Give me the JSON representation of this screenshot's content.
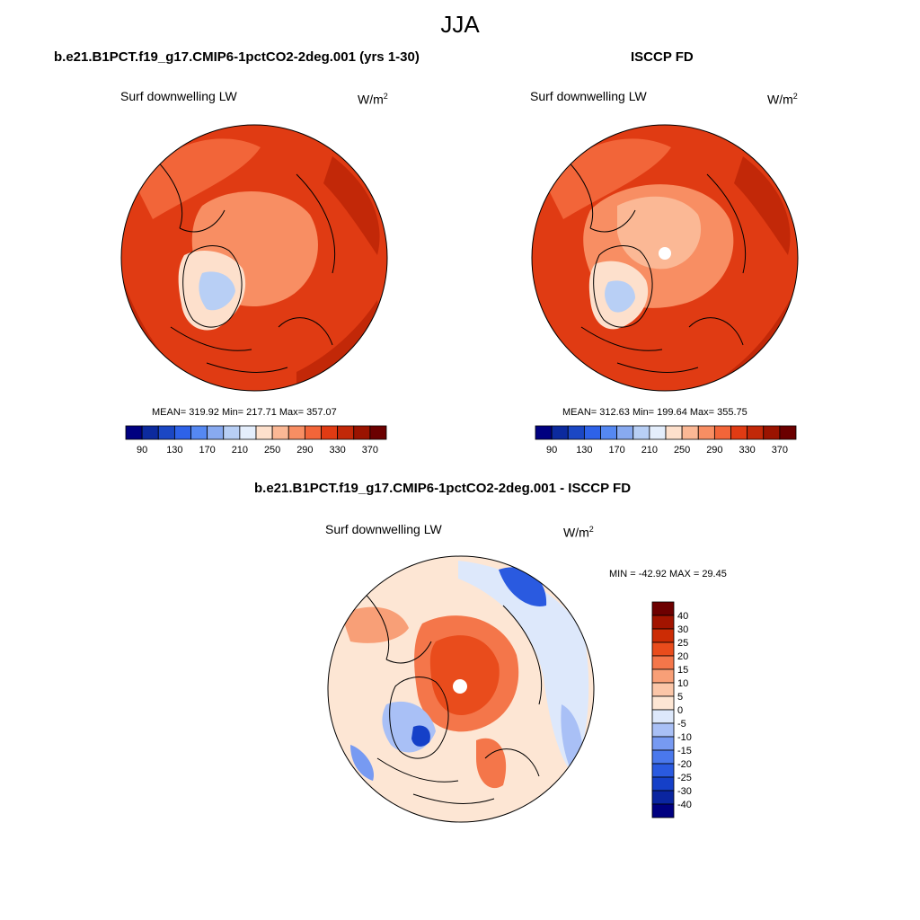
{
  "title": "JJA",
  "panels": {
    "model": {
      "title": "b.e21.B1PCT.f19_g17.CMIP6-1pctCO2-2deg.001 (yrs 1-30)",
      "variable": "Surf downwelling LW",
      "unit_base": "W/m",
      "unit_exp": "2",
      "stats": "MEAN= 319.92  Min= 217.71  Max= 357.07"
    },
    "obs": {
      "title": "ISCCP FD",
      "variable": "Surf downwelling LW",
      "unit_base": "W/m",
      "unit_exp": "2",
      "stats": "MEAN= 312.63  Min= 199.64  Max= 355.75"
    },
    "diff": {
      "title": "b.e21.B1PCT.f19_g17.CMIP6-1pctCO2-2deg.001 - ISCCP FD",
      "variable": "Surf downwelling LW",
      "unit_base": "W/m",
      "unit_exp": "2",
      "stats": "MIN = -42.92 MAX =  29.45"
    }
  },
  "chart_data": [
    {
      "type": "heatmap",
      "projection": "north-polar-stereographic",
      "title": "b.e21.B1PCT.f19_g17.CMIP6-1pctCO2-2deg.001 (yrs 1-30)",
      "variable": "Surf downwelling LW",
      "units": "W/m2",
      "mean": 319.92,
      "min": 217.71,
      "max": 357.07,
      "colorbar_orientation": "horizontal",
      "colorbar_levels": [
        90,
        110,
        130,
        150,
        170,
        190,
        210,
        230,
        250,
        270,
        290,
        310,
        330,
        350,
        370
      ],
      "colorbar_tick_labels": [
        "90",
        "130",
        "170",
        "210",
        "250",
        "290",
        "330",
        "370"
      ],
      "colorbar_colors": [
        "#000080",
        "#0c2a9e",
        "#1b47c4",
        "#2e62e8",
        "#5588f2",
        "#88aaf0",
        "#b8cff5",
        "#e4eefc",
        "#fde0cc",
        "#fbb895",
        "#f88e63",
        "#f26539",
        "#e03b13",
        "#c22808",
        "#9a1300",
        "#6b0000"
      ],
      "field_summary": "Highest values (~330-350) over mid-latitude oceans and continents; lowest (~210-250) over Greenland ice sheet; Arctic Ocean ~290-310."
    },
    {
      "type": "heatmap",
      "projection": "north-polar-stereographic",
      "title": "ISCCP FD",
      "variable": "Surf downwelling LW",
      "units": "W/m2",
      "mean": 312.63,
      "min": 199.64,
      "max": 355.75,
      "colorbar_orientation": "horizontal",
      "colorbar_levels": [
        90,
        110,
        130,
        150,
        170,
        190,
        210,
        230,
        250,
        270,
        290,
        310,
        330,
        350,
        370
      ],
      "colorbar_tick_labels": [
        "90",
        "130",
        "170",
        "210",
        "250",
        "290",
        "330",
        "370"
      ],
      "colorbar_colors": [
        "#000080",
        "#0c2a9e",
        "#1b47c4",
        "#2e62e8",
        "#5588f2",
        "#88aaf0",
        "#b8cff5",
        "#e4eefc",
        "#fde0cc",
        "#fbb895",
        "#f88e63",
        "#f26539",
        "#e03b13",
        "#c22808",
        "#9a1300",
        "#6b0000"
      ],
      "missing_region": "north pole",
      "field_summary": "Arctic Ocean ~270-290, Greenland ~210-250, mid-latitudes ~330-350."
    },
    {
      "type": "heatmap",
      "projection": "north-polar-stereographic",
      "title": "b.e21.B1PCT.f19_g17.CMIP6-1pctCO2-2deg.001 - ISCCP FD",
      "variable": "Surf downwelling LW",
      "units": "W/m2",
      "min": -42.92,
      "max": 29.45,
      "colorbar_orientation": "vertical",
      "colorbar_levels": [
        -40,
        -30,
        -25,
        -20,
        -15,
        -10,
        -5,
        0,
        5,
        10,
        15,
        20,
        25,
        30,
        40
      ],
      "colorbar_tick_labels": [
        "40",
        "30",
        "25",
        "20",
        "15",
        "10",
        "5",
        "0",
        "-5",
        "-10",
        "-15",
        "-20",
        "-25",
        "-30",
        "-40"
      ],
      "colorbar_colors": [
        "#000080",
        "#0a25a0",
        "#1540c8",
        "#2a5ae0",
        "#4a78ec",
        "#779af2",
        "#a9c0f6",
        "#dde8fb",
        "#fde6d4",
        "#fbc6a8",
        "#f89f77",
        "#f4764a",
        "#e94c1c",
        "#cc2c05",
        "#a21400",
        "#6d0000"
      ],
      "missing_region": "north pole",
      "field_summary": "Positive bias (+20 to +30) over central Arctic Ocean; negative bias (-20 to -40) over northeast Pacific/Alaska and Greenland interior; small biases elsewhere."
    }
  ]
}
